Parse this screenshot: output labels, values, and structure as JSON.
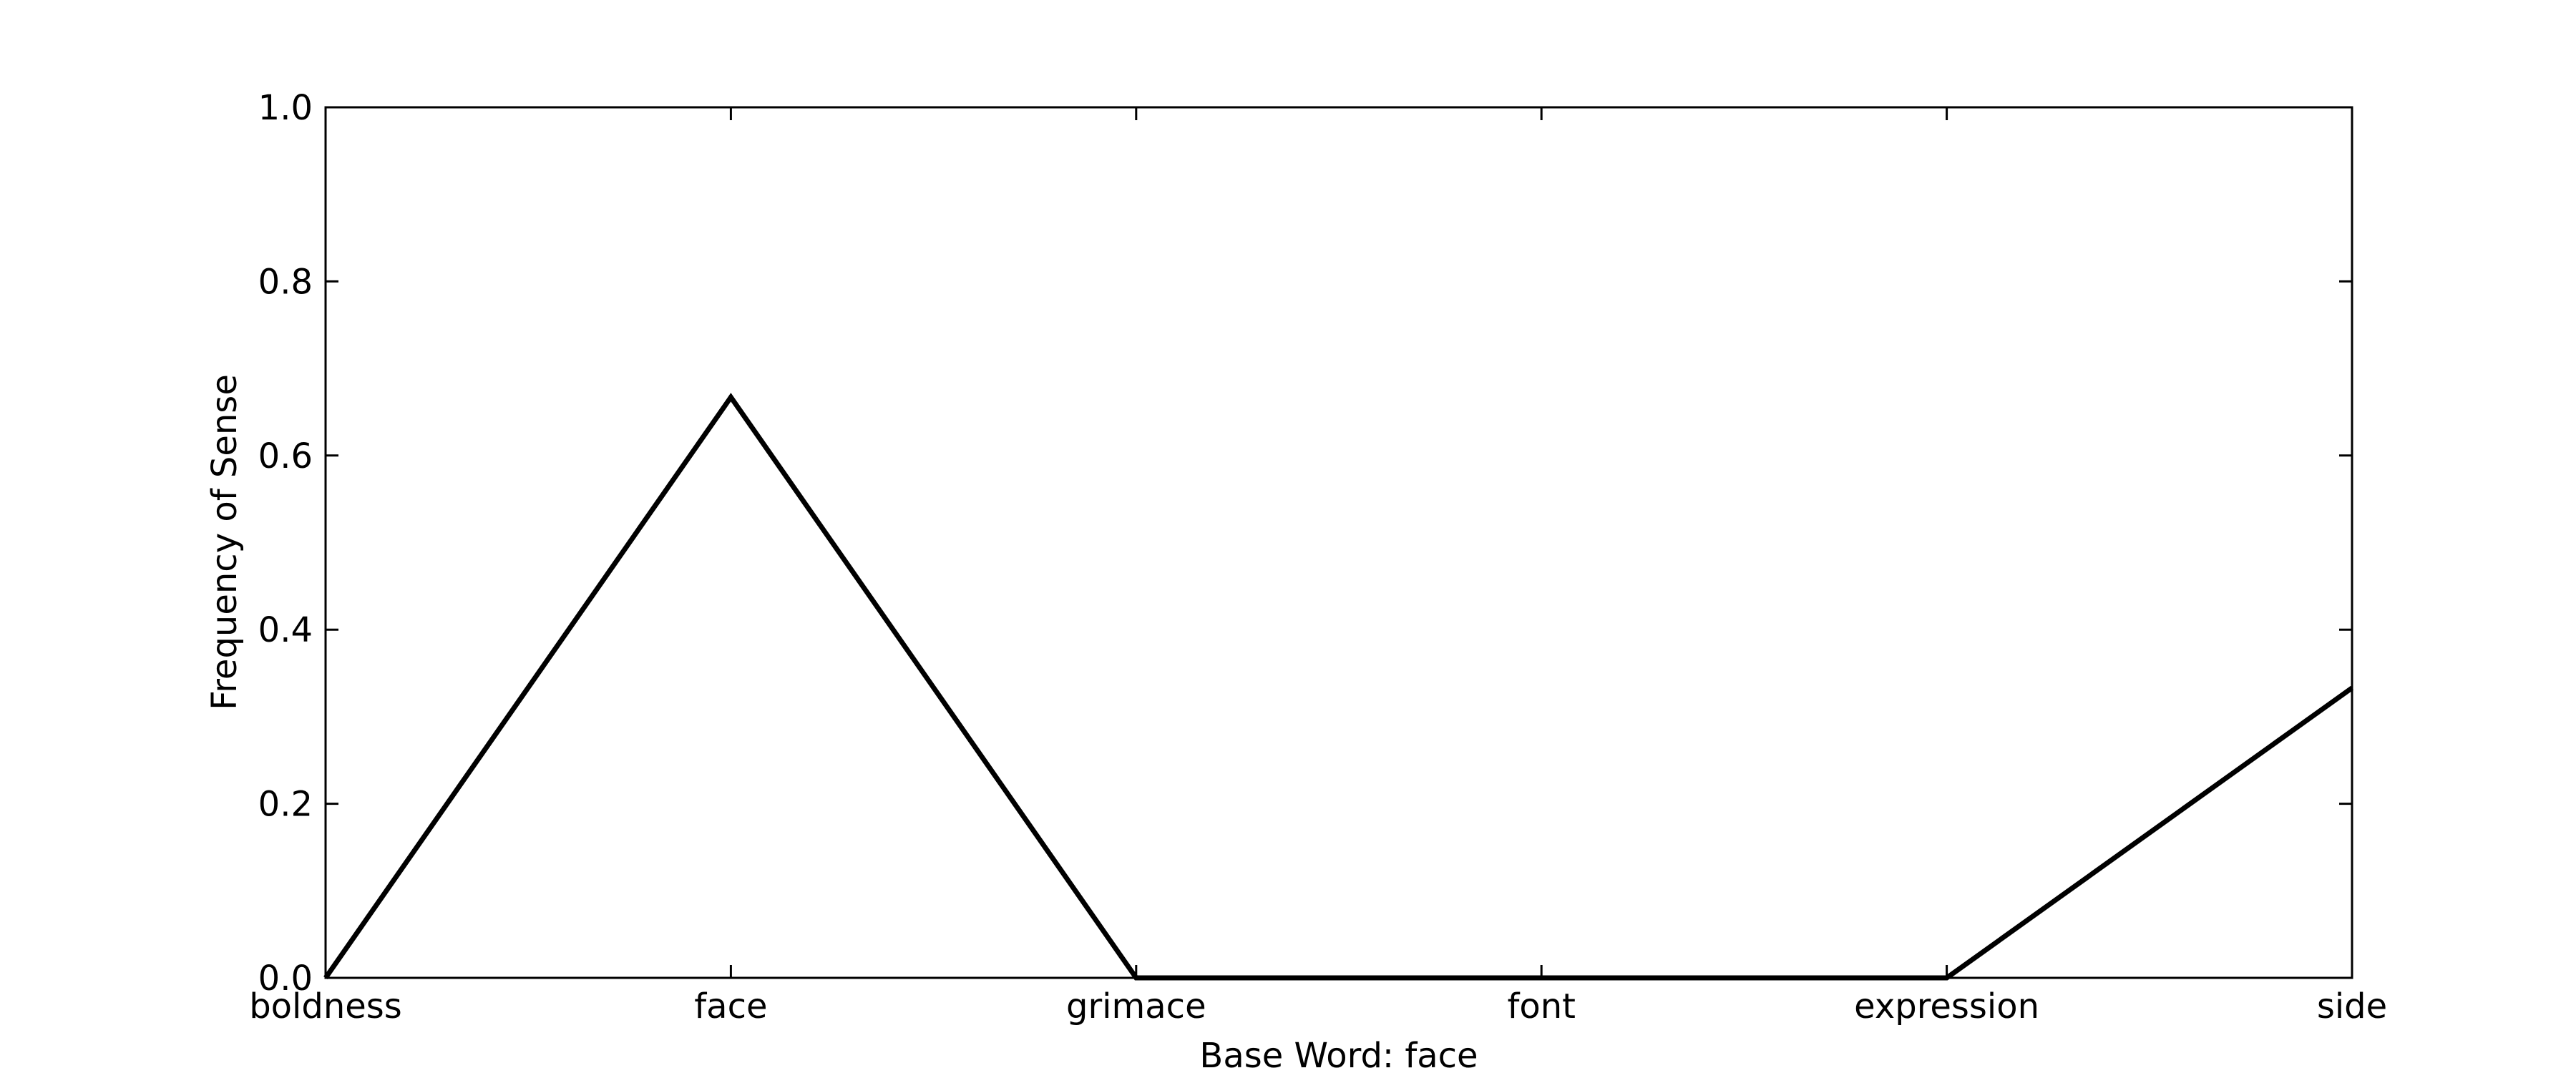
{
  "chart_data": {
    "type": "line",
    "title": "",
    "xlabel": "Base Word: face",
    "ylabel": "Frequency of Sense",
    "categories": [
      "boldness",
      "face",
      "grimace",
      "font",
      "expression",
      "side"
    ],
    "series": [
      {
        "values": [
          0.0,
          0.667,
          0.0,
          0.0,
          0.0,
          0.333
        ]
      }
    ],
    "ylim": [
      0,
      1
    ],
    "yticks": [
      "0.0",
      "0.2",
      "0.4",
      "0.6",
      "0.8",
      "1.0"
    ],
    "grid": false,
    "legend": "none",
    "colors": {
      "line": "#000000",
      "axes": "#000000",
      "background": "#ffffff"
    }
  }
}
